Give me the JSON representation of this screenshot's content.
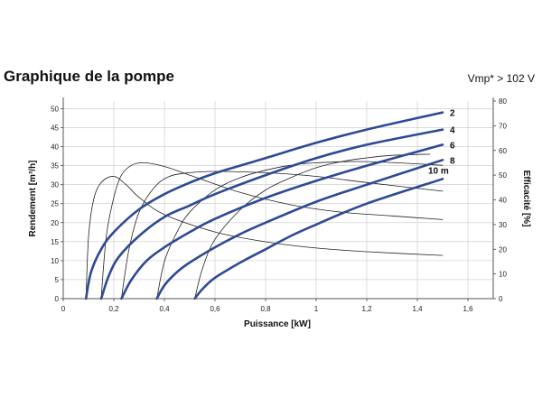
{
  "header": {
    "title": "Graphique de la pompe",
    "note": "Vmp* > 102 V"
  },
  "chart_data": {
    "type": "line",
    "xlabel": "Puissance [kW]",
    "ylabel": "Rendement [m³/h]",
    "y2label": "Efficacité [%]",
    "xlim": [
      0,
      1.7
    ],
    "ylim": [
      0,
      52
    ],
    "y2lim": [
      0,
      80
    ],
    "xticks": [
      {
        "v": 0,
        "t": "0"
      },
      {
        "v": 0.2,
        "t": "0,2"
      },
      {
        "v": 0.4,
        "t": "0,4"
      },
      {
        "v": 0.6,
        "t": "0,6"
      },
      {
        "v": 0.8,
        "t": "0,8"
      },
      {
        "v": 1.0,
        "t": "1"
      },
      {
        "v": 1.2,
        "t": "1,2"
      },
      {
        "v": 1.4,
        "t": "1,4"
      },
      {
        "v": 1.6,
        "t": "1,6"
      }
    ],
    "yticks": [
      0,
      5,
      10,
      15,
      20,
      25,
      30,
      35,
      40,
      45,
      50
    ],
    "y2ticks": [
      0,
      10,
      20,
      30,
      40,
      50,
      60,
      70,
      80
    ],
    "series": [
      {
        "name": "2",
        "axis": "y",
        "color": "#2e4a94",
        "points": [
          [
            0.09,
            0
          ],
          [
            0.11,
            7
          ],
          [
            0.15,
            13
          ],
          [
            0.2,
            17.5
          ],
          [
            0.3,
            23.5
          ],
          [
            0.4,
            27.5
          ],
          [
            0.5,
            30.5
          ],
          [
            0.6,
            33
          ],
          [
            0.8,
            37
          ],
          [
            1.0,
            41
          ],
          [
            1.2,
            44.5
          ],
          [
            1.5,
            49
          ]
        ]
      },
      {
        "name": "4",
        "axis": "y",
        "color": "#2e4a94",
        "points": [
          [
            0.15,
            0
          ],
          [
            0.18,
            6
          ],
          [
            0.22,
            11
          ],
          [
            0.3,
            16.5
          ],
          [
            0.4,
            21.5
          ],
          [
            0.5,
            24.5
          ],
          [
            0.6,
            27.5
          ],
          [
            0.8,
            32.5
          ],
          [
            1.0,
            37
          ],
          [
            1.2,
            40.5
          ],
          [
            1.5,
            44.5
          ]
        ]
      },
      {
        "name": "6",
        "axis": "y",
        "color": "#2e4a94",
        "points": [
          [
            0.23,
            0
          ],
          [
            0.27,
            5
          ],
          [
            0.33,
            10
          ],
          [
            0.4,
            13.5
          ],
          [
            0.5,
            17.5
          ],
          [
            0.6,
            21
          ],
          [
            0.8,
            26.5
          ],
          [
            1.0,
            31
          ],
          [
            1.2,
            35
          ],
          [
            1.5,
            40.5
          ]
        ]
      },
      {
        "name": "8",
        "axis": "y",
        "color": "#2e4a94",
        "points": [
          [
            0.37,
            0
          ],
          [
            0.4,
            3.5
          ],
          [
            0.45,
            7
          ],
          [
            0.5,
            9.5
          ],
          [
            0.6,
            13.5
          ],
          [
            0.7,
            17
          ],
          [
            0.8,
            20
          ],
          [
            1.0,
            25.5
          ],
          [
            1.2,
            30
          ],
          [
            1.5,
            36.5
          ]
        ]
      },
      {
        "name": "10 m",
        "axis": "y",
        "color": "#2e4a94",
        "points": [
          [
            0.52,
            0
          ],
          [
            0.55,
            2.5
          ],
          [
            0.6,
            5.5
          ],
          [
            0.7,
            9.5
          ],
          [
            0.8,
            13
          ],
          [
            0.9,
            16.5
          ],
          [
            1.0,
            19.5
          ],
          [
            1.2,
            25
          ],
          [
            1.5,
            31.5
          ]
        ]
      },
      {
        "name": "",
        "axis": "y2",
        "color": "#222222",
        "points": [
          [
            0.09,
            0
          ],
          [
            0.1,
            25
          ],
          [
            0.12,
            40
          ],
          [
            0.15,
            47
          ],
          [
            0.2,
            49.5
          ],
          [
            0.25,
            46
          ],
          [
            0.3,
            41
          ],
          [
            0.4,
            34
          ],
          [
            0.6,
            27
          ],
          [
            0.8,
            23
          ],
          [
            1.0,
            20.5
          ],
          [
            1.2,
            19
          ],
          [
            1.5,
            17.5
          ]
        ]
      },
      {
        "name": "",
        "axis": "y2",
        "color": "#222222",
        "points": [
          [
            0.15,
            0
          ],
          [
            0.17,
            25
          ],
          [
            0.2,
            41
          ],
          [
            0.23,
            50
          ],
          [
            0.27,
            54
          ],
          [
            0.32,
            55
          ],
          [
            0.4,
            53.5
          ],
          [
            0.5,
            50
          ],
          [
            0.7,
            43
          ],
          [
            0.9,
            38
          ],
          [
            1.1,
            35
          ],
          [
            1.3,
            33.5
          ],
          [
            1.5,
            32
          ]
        ]
      },
      {
        "name": "",
        "axis": "y2",
        "color": "#222222",
        "points": [
          [
            0.23,
            0
          ],
          [
            0.26,
            20
          ],
          [
            0.3,
            35
          ],
          [
            0.36,
            45
          ],
          [
            0.42,
            49.5
          ],
          [
            0.5,
            51
          ],
          [
            0.6,
            51.5
          ],
          [
            0.8,
            51
          ],
          [
            1.0,
            49.5
          ],
          [
            1.2,
            47
          ],
          [
            1.5,
            43.5
          ]
        ]
      },
      {
        "name": "",
        "axis": "y2",
        "color": "#222222",
        "points": [
          [
            0.37,
            0
          ],
          [
            0.4,
            15
          ],
          [
            0.45,
            27
          ],
          [
            0.5,
            35
          ],
          [
            0.6,
            44
          ],
          [
            0.7,
            49
          ],
          [
            0.8,
            52
          ],
          [
            0.9,
            54
          ],
          [
            1.0,
            55
          ],
          [
            1.2,
            55.5
          ],
          [
            1.5,
            54
          ]
        ]
      },
      {
        "name": "",
        "axis": "y2",
        "color": "#222222",
        "points": [
          [
            0.52,
            0
          ],
          [
            0.55,
            12
          ],
          [
            0.6,
            24
          ],
          [
            0.7,
            36
          ],
          [
            0.8,
            44
          ],
          [
            0.9,
            49
          ],
          [
            1.0,
            53
          ],
          [
            1.1,
            55.5
          ],
          [
            1.2,
            57
          ],
          [
            1.3,
            58
          ],
          [
            1.45,
            58.5
          ]
        ]
      }
    ]
  }
}
